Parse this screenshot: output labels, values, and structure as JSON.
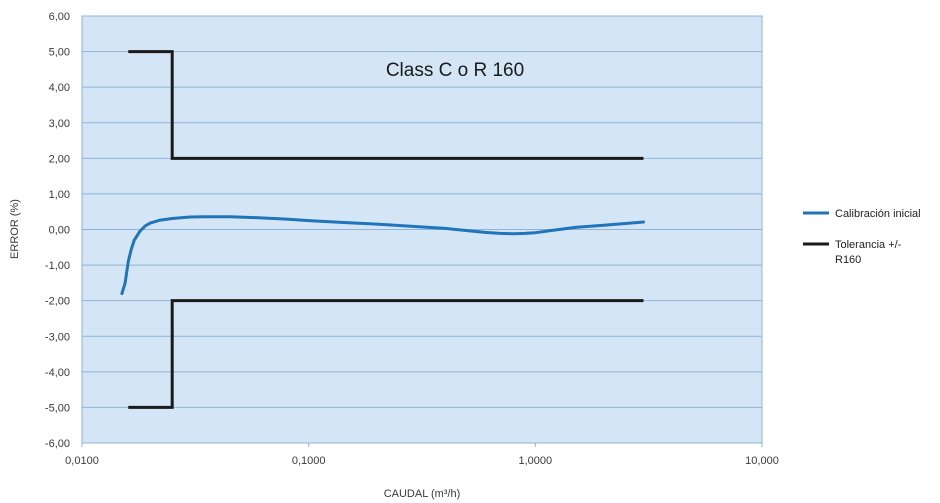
{
  "chart_data": {
    "type": "line",
    "title": "Class C o R 160",
    "xlabel": "CAUDAL (m³/h)",
    "ylabel": "ERROR (%)",
    "x_scale": "log",
    "xlim": [
      0.01,
      10
    ],
    "ylim": [
      -6,
      6
    ],
    "x_ticks": [
      "0,0100",
      "0,1000",
      "1,0000",
      "10,000"
    ],
    "y_ticks": [
      "6,00",
      "5,00",
      "4,00",
      "3,00",
      "2,00",
      "1,00",
      "0,00",
      "-1,00",
      "-2,00",
      "-3,00",
      "-4,00",
      "-5,00",
      "-6,00"
    ],
    "grid": "horizontal",
    "background_color": "#d4e6f6",
    "grid_color": "#8fb3d9",
    "legend_position": "right",
    "series": [
      {
        "name": "Calibración inicial",
        "color": "#1f74ba",
        "x": [
          0.015,
          0.0155,
          0.016,
          0.0165,
          0.017,
          0.018,
          0.019,
          0.02,
          0.022,
          0.025,
          0.03,
          0.035,
          0.045,
          0.06,
          0.08,
          0.1,
          0.15,
          0.2,
          0.3,
          0.4,
          0.5,
          0.6,
          0.7,
          0.8,
          0.9,
          1.0,
          1.2,
          1.5,
          2.0,
          2.5,
          3.0
        ],
        "y": [
          -1.8,
          -1.5,
          -0.9,
          -0.55,
          -0.3,
          -0.05,
          0.1,
          0.18,
          0.26,
          0.31,
          0.35,
          0.36,
          0.36,
          0.33,
          0.29,
          0.25,
          0.19,
          0.15,
          0.08,
          0.03,
          -0.03,
          -0.08,
          -0.11,
          -0.12,
          -0.11,
          -0.09,
          -0.02,
          0.06,
          0.12,
          0.17,
          0.21
        ]
      },
      {
        "name": "Tolerancia +/- R160",
        "color": "#1a1a1a",
        "segments": [
          {
            "x": [
              0.016,
              0.025,
              0.025,
              3.0
            ],
            "y": [
              5.0,
              5.0,
              2.0,
              2.0
            ]
          },
          {
            "x": [
              0.016,
              0.025,
              0.025,
              3.0
            ],
            "y": [
              -5.0,
              -5.0,
              -2.0,
              -2.0
            ]
          }
        ]
      }
    ]
  }
}
